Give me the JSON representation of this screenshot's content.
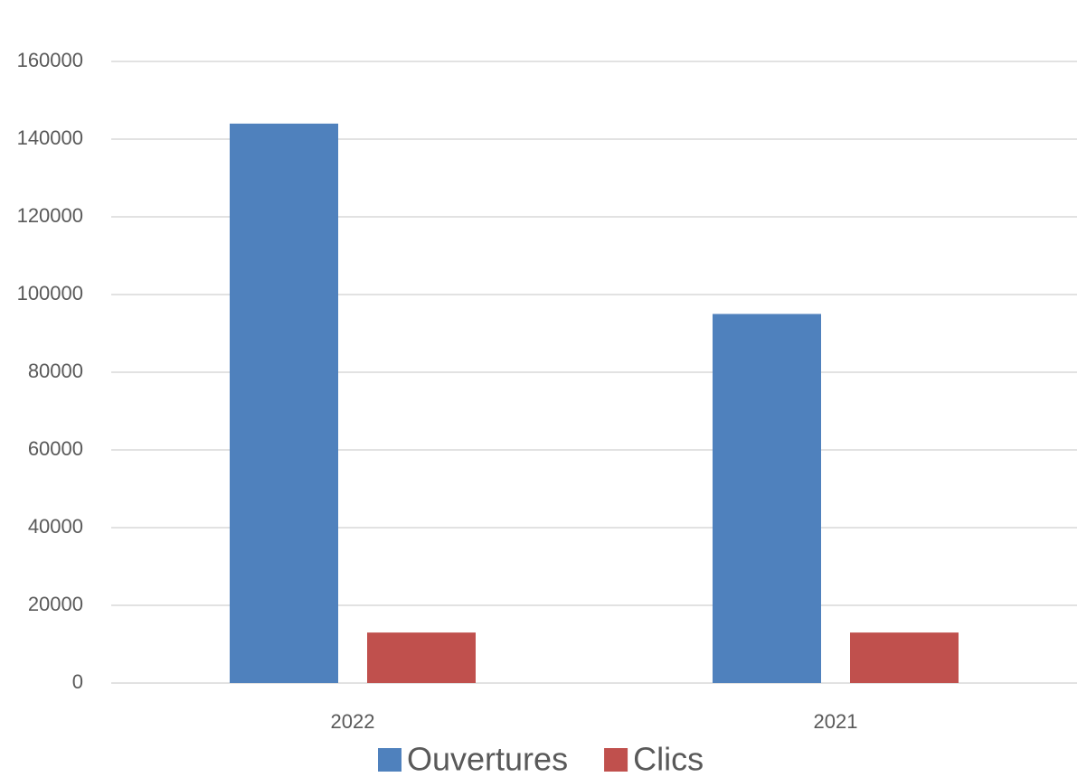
{
  "chart_data": {
    "type": "bar",
    "categories": [
      "2022",
      "2021"
    ],
    "series": [
      {
        "name": "Ouvertures",
        "color": "#4f81bd",
        "values": [
          144000,
          95000
        ]
      },
      {
        "name": "Clics",
        "color": "#c0504d",
        "values": [
          13000,
          13000
        ]
      }
    ],
    "ylim": [
      0,
      160000
    ],
    "yticks": [
      0,
      20000,
      40000,
      60000,
      80000,
      100000,
      120000,
      140000,
      160000
    ],
    "grid": true,
    "legend": "bottom"
  }
}
